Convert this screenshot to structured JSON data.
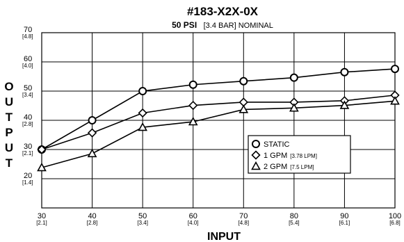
{
  "chart_data": {
    "type": "line",
    "title": "#183-X2X-0X",
    "subtitle_bold": "50 PSI",
    "subtitle_rest": "[3.4 BAR] NOMINAL",
    "xlabel": "INPUT",
    "ylabel": "OUTPUT",
    "xlim": [
      30,
      100
    ],
    "ylim": [
      10,
      70
    ],
    "grid": true,
    "x_ticks": [
      {
        "label": "30",
        "sub": "[2.1]"
      },
      {
        "label": "40",
        "sub": "[2.8]"
      },
      {
        "label": "50",
        "sub": "[3.4]"
      },
      {
        "label": "60",
        "sub": "[4.0]"
      },
      {
        "label": "70",
        "sub": "[4.8]"
      },
      {
        "label": "80",
        "sub": "[5.4]"
      },
      {
        "label": "90",
        "sub": "[6.1]"
      },
      {
        "label": "100",
        "sub": "[6.8]"
      }
    ],
    "y_ticks": [
      {
        "label": "20",
        "sub": "[1.4]"
      },
      {
        "label": "30",
        "sub": "[2.1]"
      },
      {
        "label": "40",
        "sub": "[2.8]"
      },
      {
        "label": "50",
        "sub": "[3.4]"
      },
      {
        "label": "60",
        "sub": "[4.0]"
      },
      {
        "label": "70",
        "sub": "[4.8]"
      }
    ],
    "x": [
      30,
      40,
      50,
      60,
      70,
      80,
      90,
      100
    ],
    "series": [
      {
        "name": "STATIC",
        "sub": "",
        "marker": "circle",
        "values": [
          30,
          40,
          50,
          52.2,
          53.4,
          54.6,
          56.5,
          57.6
        ]
      },
      {
        "name": "1 GPM",
        "sub": "[3.78 LPM]",
        "marker": "diamond",
        "values": [
          30,
          35.7,
          42.5,
          45.1,
          46.2,
          46.2,
          46.7,
          48.6
        ]
      },
      {
        "name": "2 GPM",
        "sub": "[7.5 LPM]",
        "marker": "triangle",
        "values": [
          23.8,
          28.6,
          37.6,
          39.5,
          43.7,
          44.2,
          45.1,
          46.6
        ]
      }
    ],
    "legend_position": "right"
  }
}
